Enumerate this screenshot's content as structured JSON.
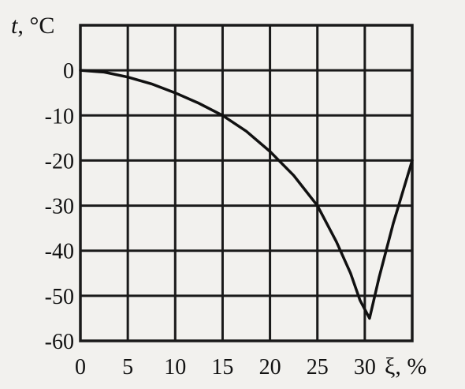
{
  "chart_data": {
    "type": "line",
    "ylabel_var": "t",
    "ylabel_unit": ", °C",
    "xlabel": "ξ, %",
    "xlim": [
      0,
      35
    ],
    "ylim": [
      -60,
      10
    ],
    "x_ticks": [
      0,
      5,
      10,
      15,
      20,
      25,
      30
    ],
    "y_ticks": [
      0,
      -10,
      -20,
      -30,
      -40,
      -50,
      -60
    ],
    "x_tick_labels": [
      "0",
      "5",
      "10",
      "15",
      "20",
      "25",
      "30"
    ],
    "y_tick_labels": [
      "0",
      "-10",
      "-20",
      "-30",
      "-40",
      "-50",
      "-60"
    ],
    "grid": true,
    "series": [
      {
        "x": [
          0,
          2.5,
          5,
          7.5,
          10,
          12.5,
          15,
          17.5,
          20,
          22.5,
          25,
          27,
          28.5,
          29.5,
          30.5,
          31.5,
          33,
          35
        ],
        "y": [
          0,
          -0.4,
          -1.5,
          -3.0,
          -5.0,
          -7.3,
          -10,
          -13.5,
          -18,
          -23.3,
          -30,
          -38,
          -45,
          -51,
          -55,
          -46,
          -34,
          -20
        ]
      }
    ]
  }
}
